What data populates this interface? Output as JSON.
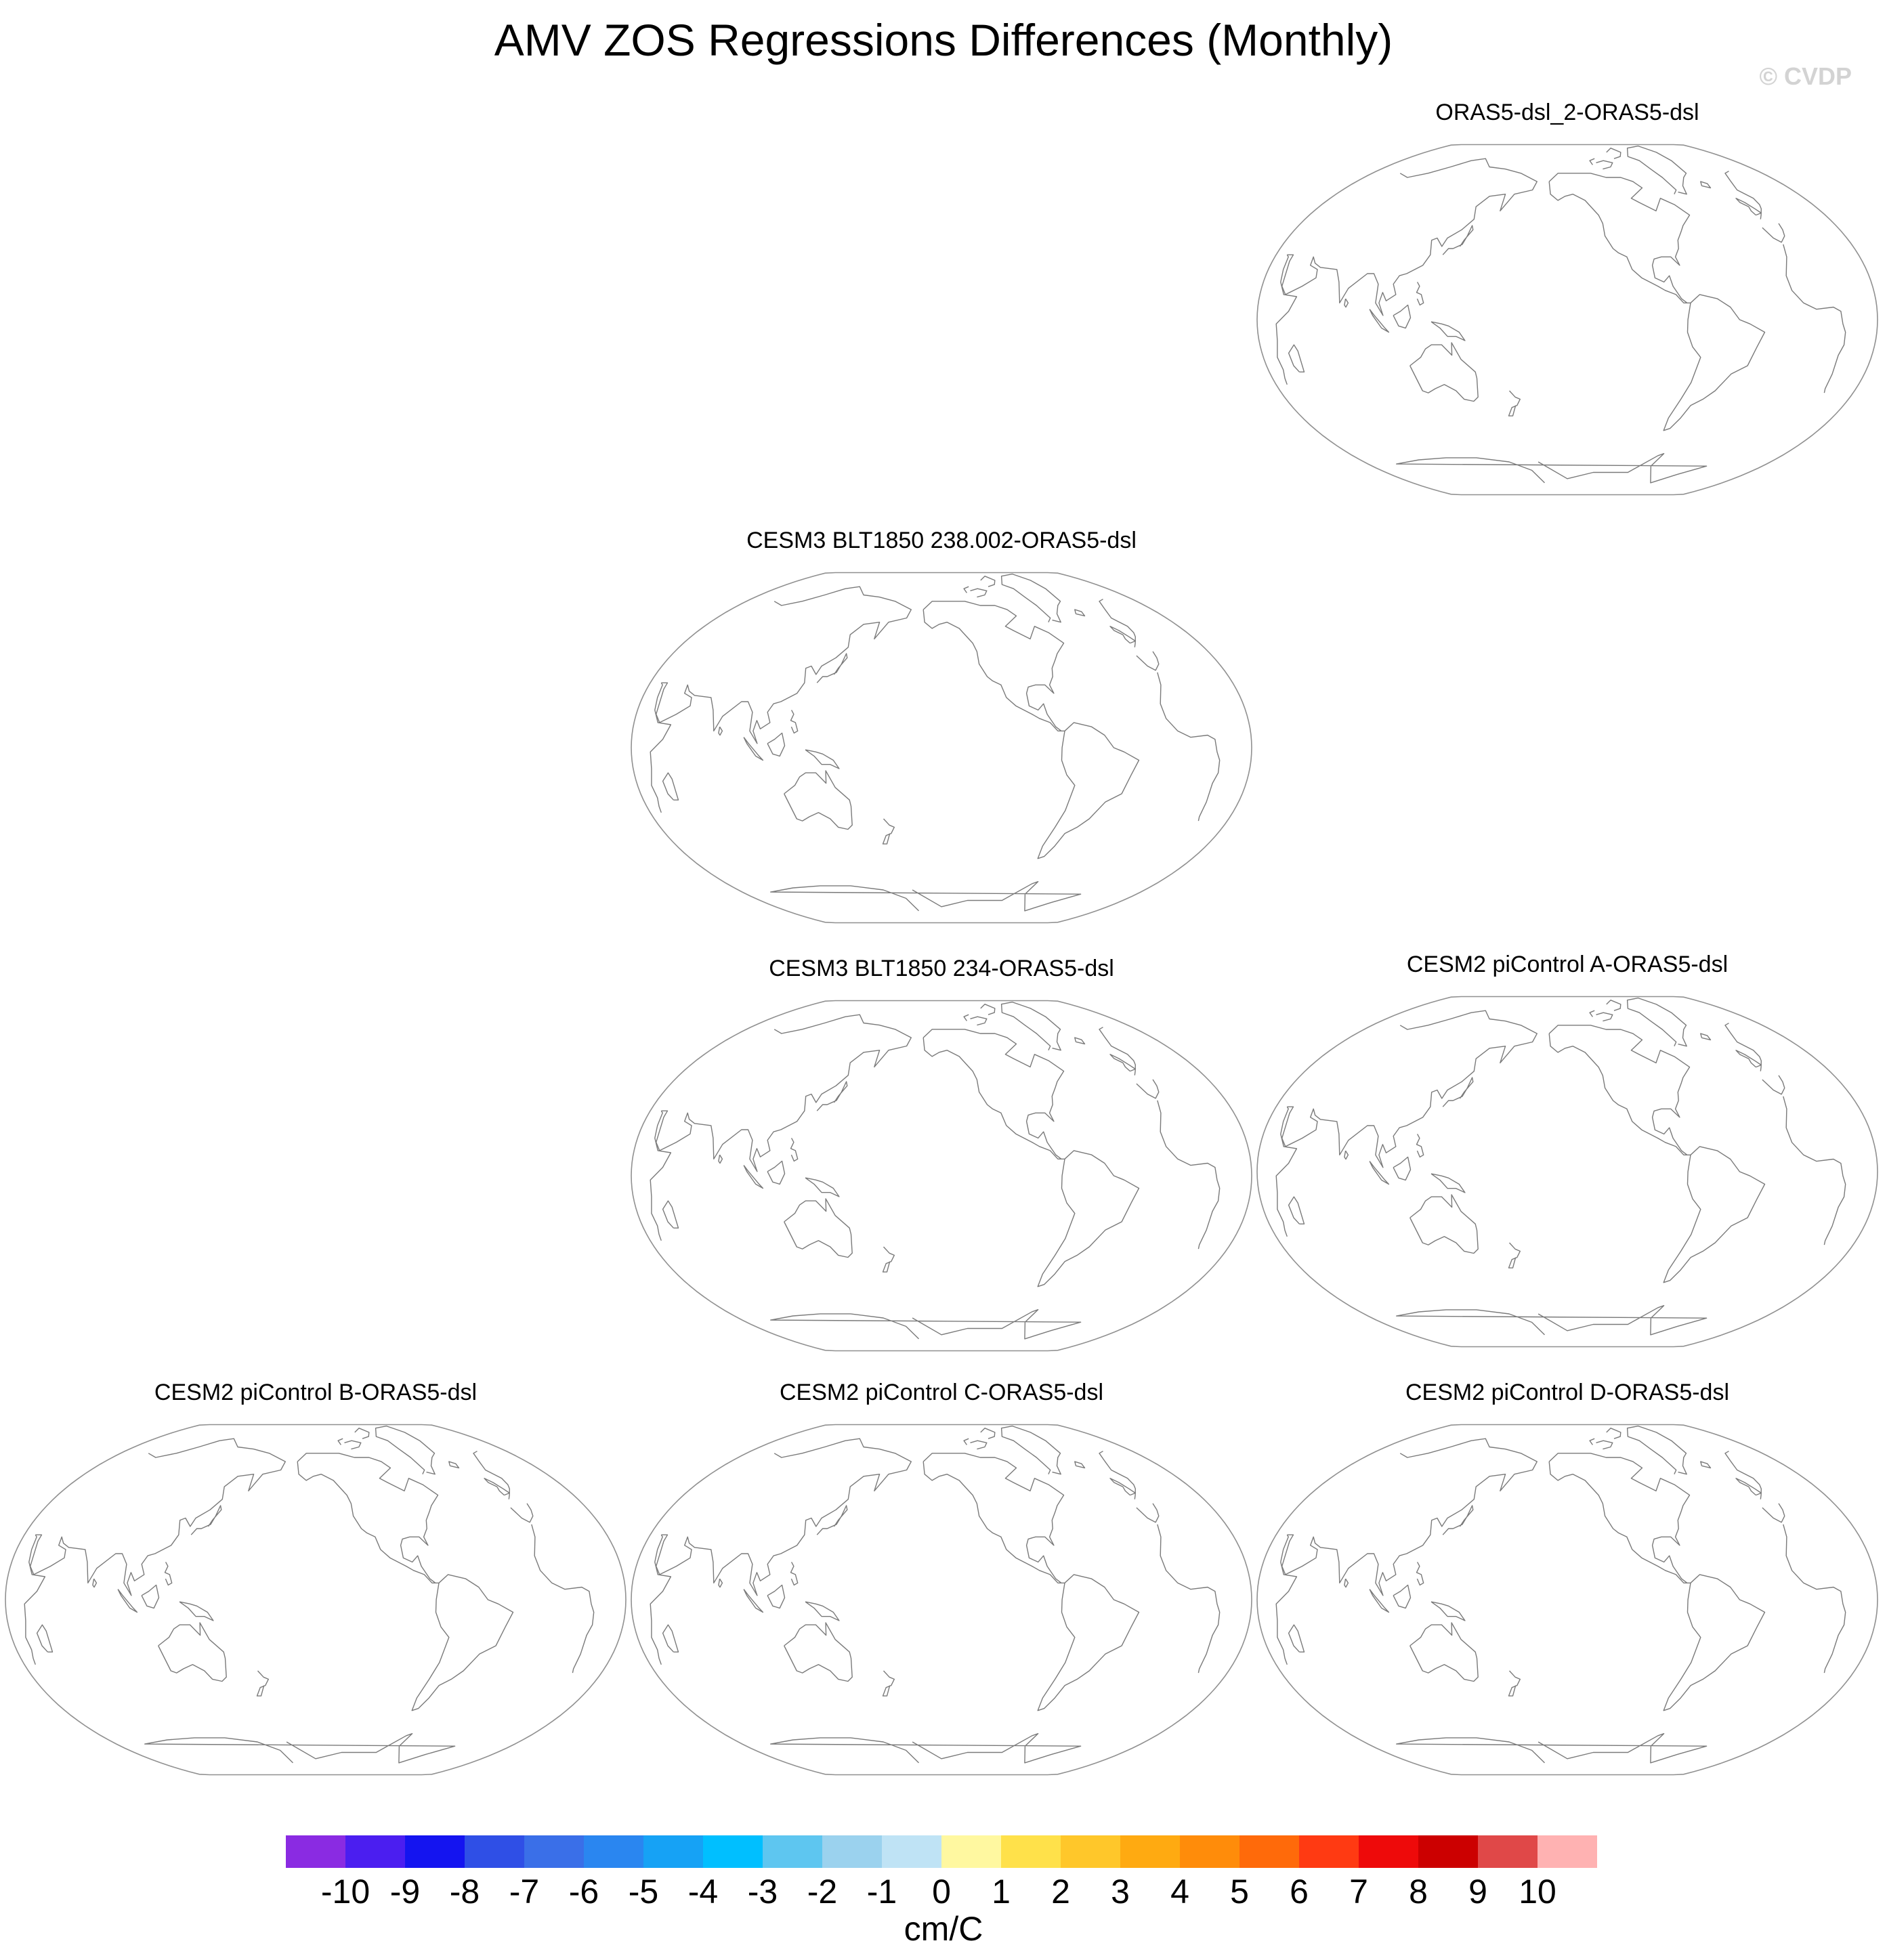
{
  "title": "AMV ZOS Regressions Differences (Monthly)",
  "watermark": "© CVDP",
  "panels": [
    {
      "title": "ORAS5-dsl_2-ORAS5-dsl"
    },
    {
      "title": "CESM3 BLT1850 238.002-ORAS5-dsl"
    },
    {
      "title": "CESM3 BLT1850 234-ORAS5-dsl"
    },
    {
      "title": "CESM2 piControl A-ORAS5-dsl"
    },
    {
      "title": "CESM2 piControl B-ORAS5-dsl"
    },
    {
      "title": "CESM2 piControl C-ORAS5-dsl"
    },
    {
      "title": "CESM2 piControl D-ORAS5-dsl"
    }
  ],
  "colorbar": {
    "units": "cm/C",
    "labels": [
      "-10",
      "-9",
      "-8",
      "-7",
      "-6",
      "-5",
      "-4",
      "-3",
      "-2",
      "-1",
      "0",
      "1",
      "2",
      "3",
      "4",
      "5",
      "6",
      "7",
      "8",
      "9",
      "10"
    ],
    "colors": [
      "#8a2be2",
      "#4b1ef0",
      "#1414f0",
      "#2f4fe6",
      "#3a6fe8",
      "#2a86f0",
      "#16a2f5",
      "#00bfff",
      "#5ec6f0",
      "#9bd2ee",
      "#bfe3f5",
      "#fff8a0",
      "#ffe14a",
      "#ffc72a",
      "#ffaa11",
      "#ff8c0a",
      "#ff6a0a",
      "#ff3a12",
      "#ee0a0a",
      "#cc0000",
      "#e04848",
      "#ffb2b2"
    ]
  }
}
